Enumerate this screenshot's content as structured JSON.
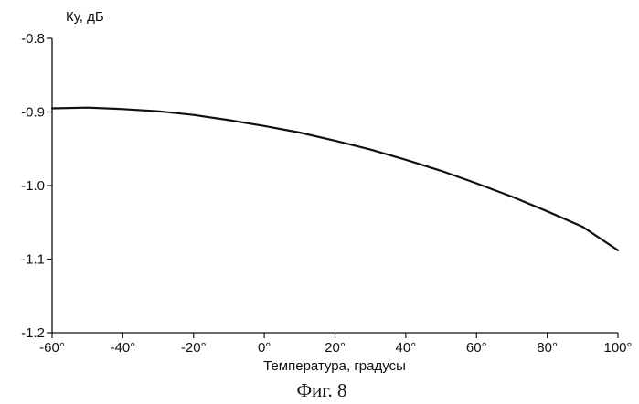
{
  "chart_data": {
    "type": "line",
    "ylabel": "Ку, дБ",
    "xlabel": "Температура, градусы",
    "caption": "Фиг. 8",
    "xlim": [
      -60,
      100
    ],
    "ylim": [
      -1.2,
      -0.8
    ],
    "x_ticks": [
      -60,
      -40,
      -20,
      0,
      20,
      40,
      60,
      80,
      100
    ],
    "x_tick_labels": [
      "-60°",
      "-40°",
      "-20°",
      "0°",
      "20°",
      "40°",
      "60°",
      "80°",
      "100°"
    ],
    "y_ticks": [
      -0.8,
      -0.9,
      -1.0,
      -1.1,
      -1.2
    ],
    "y_tick_labels": [
      "-0.8",
      "-0.9",
      "-1.0",
      "-1.1",
      "-1.2"
    ],
    "grid": false,
    "series": [
      {
        "x": [
          -60,
          -50,
          -40,
          -30,
          -20,
          -10,
          0,
          10,
          20,
          30,
          40,
          50,
          60,
          70,
          80,
          90,
          100
        ],
        "values": [
          -0.895,
          -0.894,
          -0.896,
          -0.899,
          -0.904,
          -0.911,
          -0.919,
          -0.928,
          -0.939,
          -0.951,
          -0.965,
          -0.98,
          -0.997,
          -1.015,
          -1.035,
          -1.056,
          -1.088
        ]
      }
    ]
  }
}
